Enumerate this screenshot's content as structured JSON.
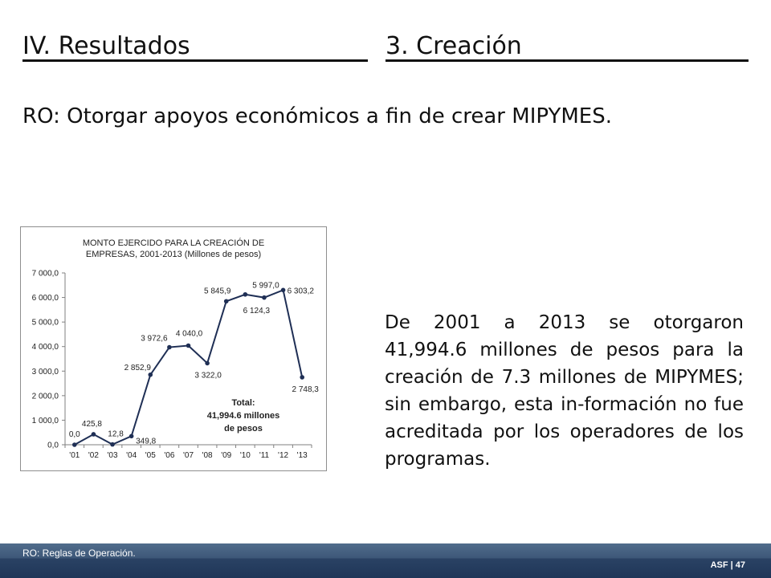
{
  "header": {
    "left_title": "IV. Resultados",
    "right_title": "3.  Creación"
  },
  "subtitle": "RO: Otorgar apoyos económicos a fin de crear MIPYMES.",
  "body_text": "De 2001 a 2013 se otorgaron 41,994.6 millones de pesos para la creación de 7.3 millones de MIPYMES; sin embargo, esta in-formación no fue acreditada por los operadores de los programas.",
  "footer": {
    "note": "RO: Reglas de Operación.",
    "page": "ASF | 47"
  },
  "chart_data": {
    "type": "line",
    "title_lines": [
      "MONTO EJERCIDO PARA LA CREACIÓN  DE",
      "EMPRESAS, 2001-2013  (Millones de pesos)"
    ],
    "categories": [
      "'01",
      "'02",
      "'03",
      "'04",
      "'05",
      "'06",
      "'07",
      "'08",
      "'09",
      "'10",
      "'11",
      "'12",
      "'13"
    ],
    "values": [
      0.0,
      425.8,
      12.8,
      349.8,
      2852.9,
      3972.6,
      4040.0,
      3322.0,
      5845.9,
      6124.3,
      5997.0,
      6303.2,
      2748.3
    ],
    "data_labels": [
      "0,0",
      "425,8",
      "12,8",
      "349,8",
      "2 852,9",
      "3 972,6",
      "4 040,0",
      "3 322,0",
      "5 845,9",
      "6 124,3",
      "5 997,0",
      "6 303,2",
      "2 748,3"
    ],
    "ylim": [
      0,
      7000
    ],
    "yticks": [
      0,
      1000,
      2000,
      3000,
      4000,
      5000,
      6000,
      7000
    ],
    "ytick_labels": [
      "0,0",
      "1 000,0",
      "2 000,0",
      "3 000,0",
      "4 000,0",
      "5 000,0",
      "6 000,0",
      "7 000,0"
    ],
    "annotation_lines": [
      "Total:",
      "41,994.6  millones",
      "de pesos"
    ],
    "xlabel": "",
    "ylabel": "",
    "grid": false,
    "legend": "none",
    "line_color": "#1f2f55"
  }
}
